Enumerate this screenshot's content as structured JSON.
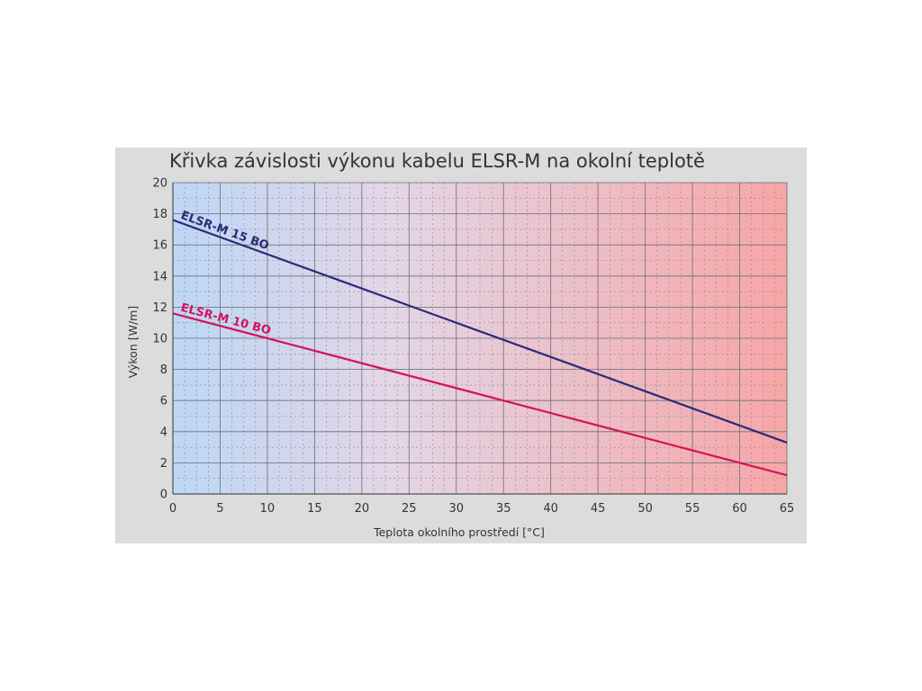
{
  "chart_data": {
    "type": "line",
    "title": "Křivka závislosti výkonu kabelu ELSR-M na okolní teplotě",
    "xlabel": "Teplota okolního prostředí [°C]",
    "ylabel": "Výkon [W/m]",
    "xlim": [
      0,
      65
    ],
    "ylim": [
      0,
      20
    ],
    "xticks": [
      0,
      5,
      10,
      15,
      20,
      25,
      30,
      35,
      40,
      45,
      50,
      55,
      60,
      65
    ],
    "yticks": [
      0,
      2,
      4,
      6,
      8,
      10,
      12,
      14,
      16,
      18,
      20
    ],
    "grid": true,
    "legend": "inline labels on lines",
    "background": "horizontal gradient from light blue to light red",
    "series": [
      {
        "name": "ELSR-M 15 BO",
        "color": "#2b2a78",
        "x": [
          0,
          65
        ],
        "y": [
          17.6,
          3.3
        ]
      },
      {
        "name": "ELSR-M 10 BO",
        "color": "#d4145a",
        "x": [
          0,
          65
        ],
        "y": [
          11.6,
          1.2
        ]
      }
    ]
  }
}
